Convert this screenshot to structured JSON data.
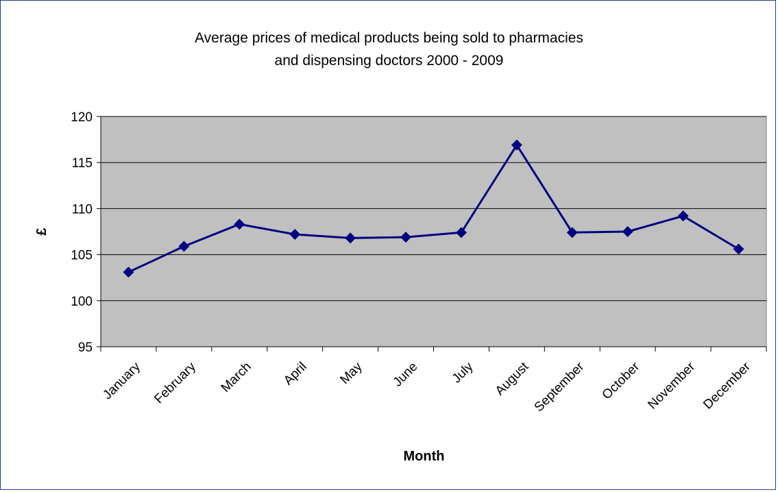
{
  "chart_data": {
    "type": "line",
    "title_lines": [
      "Average prices of medical products being sold to pharmacies",
      "and dispensing doctors 2000 - 2009"
    ],
    "xlabel": "Month",
    "ylabel": "£",
    "categories": [
      "January",
      "February",
      "March",
      "April",
      "May",
      "June",
      "July",
      "August",
      "September",
      "October",
      "November",
      "December"
    ],
    "series": [
      {
        "values": [
          103.1,
          105.9,
          108.3,
          107.2,
          106.8,
          106.9,
          107.4,
          116.9,
          107.4,
          107.5,
          109.2,
          105.6
        ]
      }
    ],
    "ylim": [
      95,
      120
    ],
    "yticks": [
      95,
      100,
      105,
      110,
      115,
      120
    ],
    "grid": "horizontal",
    "legend": "none",
    "colors": {
      "line": "#000080",
      "plot_background": "#c0c0c0",
      "frame": "#1f3f9f"
    }
  }
}
